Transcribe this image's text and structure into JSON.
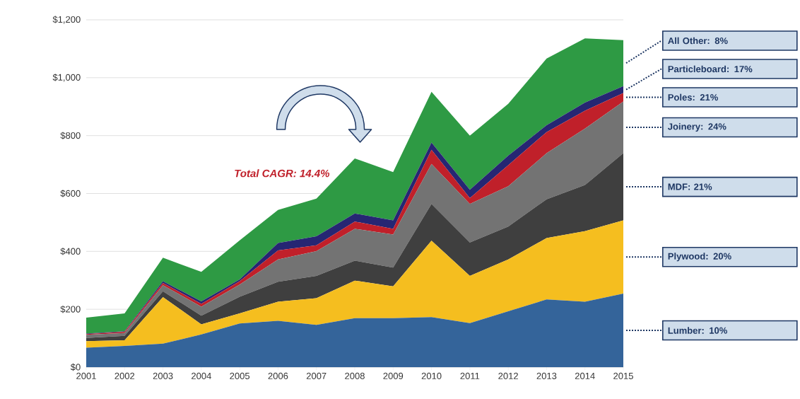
{
  "chart_data": {
    "type": "area",
    "stacked": true,
    "categories": [
      "2001",
      "2002",
      "2003",
      "2004",
      "2005",
      "2006",
      "2007",
      "2008",
      "2009",
      "2010",
      "2011",
      "2012",
      "2013",
      "2014",
      "2015"
    ],
    "series": [
      {
        "name": "Lumber: 10%",
        "color": "#34649a",
        "values": [
          67,
          73,
          81,
          113,
          151,
          160,
          146,
          169,
          169,
          173,
          152,
          193,
          234,
          226,
          254
        ]
      },
      {
        "name": "Plywood: 20%",
        "color": "#f5be1f",
        "values": [
          23,
          20,
          161,
          35,
          35,
          66,
          92,
          130,
          110,
          264,
          163,
          179,
          212,
          244,
          253
        ]
      },
      {
        "name": "MDF: 21%",
        "color": "#3f3f3f",
        "values": [
          11,
          15,
          20,
          30,
          57,
          69,
          77,
          69,
          65,
          127,
          116,
          114,
          134,
          159,
          232
        ]
      },
      {
        "name": "Joinery: 24%",
        "color": "#737373",
        "values": [
          11,
          10,
          21,
          31,
          42,
          77,
          86,
          110,
          114,
          138,
          133,
          139,
          159,
          195,
          179
        ]
      },
      {
        "name": "Poles: 21%",
        "color": "#c0202a",
        "values": [
          2,
          4,
          8,
          10,
          12,
          31,
          20,
          25,
          20,
          49,
          20,
          73,
          73,
          62,
          29
        ]
      },
      {
        "name": "Particleboard: 17%",
        "color": "#262673",
        "values": [
          2,
          2,
          6,
          8,
          6,
          26,
          31,
          28,
          29,
          25,
          29,
          33,
          24,
          28,
          24
        ]
      },
      {
        "name": "All Other: 8%",
        "color": "#2e9a44",
        "values": [
          55,
          62,
          81,
          102,
          135,
          114,
          130,
          190,
          167,
          175,
          187,
          179,
          230,
          222,
          159
        ]
      }
    ],
    "ylim": [
      0,
      1200
    ],
    "yticks": [
      {
        "value": 0,
        "label": "$0"
      },
      {
        "value": 200,
        "label": "$200"
      },
      {
        "value": 400,
        "label": "$400"
      },
      {
        "value": 600,
        "label": "$600"
      },
      {
        "value": 800,
        "label": "$800"
      },
      {
        "value": 1000,
        "label": "$1,000"
      },
      {
        "value": 1200,
        "label": "$1,200"
      }
    ],
    "grid": "y",
    "legend": "right",
    "annotations": [
      "Total CAGR: 14.4%"
    ]
  }
}
